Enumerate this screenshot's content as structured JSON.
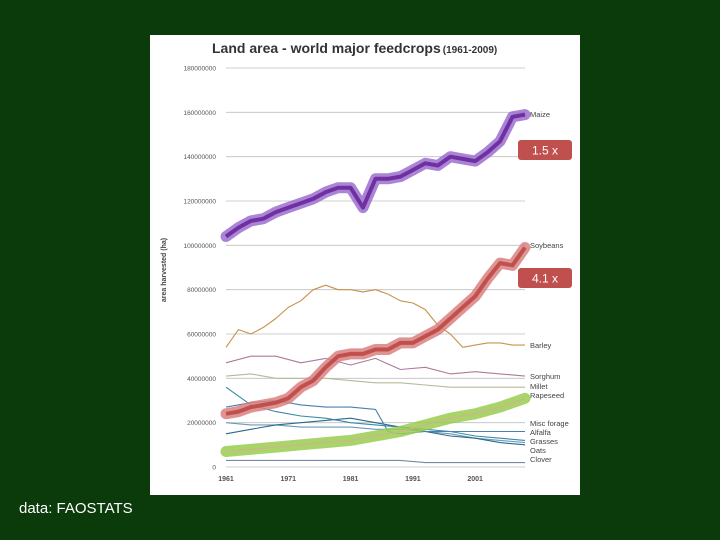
{
  "page": {
    "background": "#0b3a0b",
    "source_note": "data: FAOSTATS"
  },
  "chart_data": {
    "type": "line",
    "title": "Land area - world major feedcrops",
    "title_suffix": "(1961-2009)",
    "ylabel": "area harvested (ha)",
    "xlabel": "",
    "xlim": [
      1961,
      2009
    ],
    "ylim": [
      0,
      180000000
    ],
    "y_ticks": [
      "180000000",
      "160000000",
      "140000000",
      "120000000",
      "100000000",
      "80000000",
      "60000000",
      "40000000",
      "20000000",
      "0"
    ],
    "y_tick_values": [
      180000000,
      160000000,
      140000000,
      120000000,
      100000000,
      80000000,
      60000000,
      40000000,
      20000000,
      0
    ],
    "x_ticks": [
      "1961",
      "1971",
      "1981",
      "1991",
      "2001"
    ],
    "x_tick_values": [
      1961,
      1971,
      1981,
      1991,
      2001
    ],
    "grid": true,
    "series": [
      {
        "name": "Maize",
        "color": "#7030a0",
        "highlight": true,
        "x": [
          1961,
          1963,
          1965,
          1967,
          1969,
          1971,
          1973,
          1975,
          1977,
          1979,
          1981,
          1983,
          1985,
          1987,
          1989,
          1991,
          1993,
          1995,
          1997,
          1999,
          2001,
          2003,
          2005,
          2007,
          2009
        ],
        "values": [
          104000000,
          108000000,
          111000000,
          112000000,
          115000000,
          117000000,
          119000000,
          121000000,
          124000000,
          126000000,
          126000000,
          117000000,
          130000000,
          130000000,
          131000000,
          134000000,
          137000000,
          136000000,
          140000000,
          139000000,
          138000000,
          142000000,
          147000000,
          158000000,
          159000000
        ]
      },
      {
        "name": "Soybeans",
        "color": "#c0504d",
        "highlight": true,
        "x": [
          1961,
          1963,
          1965,
          1967,
          1969,
          1971,
          1973,
          1975,
          1977,
          1979,
          1981,
          1983,
          1985,
          1987,
          1989,
          1991,
          1993,
          1995,
          1997,
          1999,
          2001,
          2003,
          2005,
          2007,
          2009
        ],
        "values": [
          24000000,
          25000000,
          27000000,
          28000000,
          29000000,
          31000000,
          36000000,
          39000000,
          45000000,
          50000000,
          51000000,
          51000000,
          53000000,
          53000000,
          56000000,
          56000000,
          59000000,
          62000000,
          67000000,
          72000000,
          77000000,
          85000000,
          92000000,
          91000000,
          99000000
        ]
      },
      {
        "name": "Barley",
        "color": "#c8924a",
        "x": [
          1961,
          1963,
          1965,
          1967,
          1969,
          1971,
          1973,
          1975,
          1977,
          1979,
          1981,
          1983,
          1985,
          1987,
          1989,
          1991,
          1993,
          1995,
          1997,
          1999,
          2001,
          2003,
          2005,
          2007,
          2009
        ],
        "values": [
          54000000,
          62000000,
          60000000,
          63000000,
          67000000,
          72000000,
          75000000,
          80000000,
          82000000,
          80000000,
          80000000,
          79000000,
          80000000,
          78000000,
          75000000,
          74000000,
          71000000,
          64000000,
          60000000,
          54000000,
          55000000,
          56000000,
          56000000,
          55000000,
          55000000
        ]
      },
      {
        "name": "Sorghum",
        "color": "#b07a9a",
        "x": [
          1961,
          1965,
          1969,
          1973,
          1977,
          1981,
          1985,
          1989,
          1993,
          1997,
          2001,
          2005,
          2009
        ],
        "values": [
          47000000,
          50000000,
          50000000,
          47000000,
          49000000,
          46000000,
          49000000,
          44000000,
          45000000,
          42000000,
          43000000,
          42000000,
          41000000
        ]
      },
      {
        "name": "Millet",
        "color": "#b8b89a",
        "x": [
          1961,
          1965,
          1969,
          1973,
          1977,
          1981,
          1985,
          1989,
          1993,
          1997,
          2001,
          2005,
          2009
        ],
        "values": [
          41000000,
          42000000,
          40000000,
          40000000,
          40000000,
          39000000,
          38000000,
          38000000,
          37000000,
          36000000,
          36000000,
          36000000,
          36000000
        ]
      },
      {
        "name": "Rapeseed",
        "color": "#d4b090",
        "x": [
          1961,
          1965,
          1969,
          1973,
          1977,
          1981,
          1985,
          1989,
          1993,
          1997,
          2001,
          2005,
          2009
        ],
        "values": [
          7000000,
          8000000,
          9000000,
          10000000,
          11000000,
          12000000,
          14000000,
          16000000,
          19000000,
          22000000,
          24000000,
          27000000,
          31000000
        ]
      },
      {
        "name": "Misc forage",
        "color": "#4a7fb0",
        "x": [
          1961,
          1965,
          1969,
          1973,
          1977,
          1981,
          1985,
          1987,
          1989,
          1993,
          1997,
          2001,
          2005,
          2009
        ],
        "values": [
          27000000,
          29000000,
          30000000,
          28000000,
          27000000,
          27000000,
          26000000,
          16000000,
          15000000,
          16000000,
          16000000,
          16000000,
          16000000,
          16000000
        ]
      },
      {
        "name": "Alfalfa",
        "color": "#3a8aa8",
        "x": [
          1961,
          1965,
          1969,
          1973,
          1977,
          1981,
          1985,
          1989,
          1993,
          1997,
          2001,
          2005,
          2009
        ],
        "values": [
          36000000,
          28000000,
          25000000,
          23000000,
          22000000,
          20000000,
          19000000,
          18000000,
          17000000,
          16000000,
          14000000,
          13000000,
          12000000
        ]
      },
      {
        "name": "Grasses",
        "color": "#2a6a8a",
        "x": [
          1961,
          1965,
          1969,
          1973,
          1977,
          1981,
          1985,
          1989,
          1993,
          1997,
          2001,
          2005,
          2009
        ],
        "values": [
          15000000,
          17000000,
          19000000,
          20000000,
          21000000,
          22000000,
          20000000,
          18000000,
          16000000,
          14000000,
          13000000,
          11000000,
          10000000
        ]
      },
      {
        "name": "Oats",
        "color": "#6a9ab8",
        "x": [
          1961,
          1965,
          1969,
          1973,
          1977,
          1981,
          1985,
          1989,
          1993,
          1997,
          2001,
          2005,
          2009
        ],
        "values": [
          20000000,
          19000000,
          19000000,
          18000000,
          18000000,
          18000000,
          17000000,
          17000000,
          16000000,
          15000000,
          13000000,
          12000000,
          11000000
        ]
      },
      {
        "name": "Clover",
        "color": "#7a8aa0",
        "x": [
          1961,
          1965,
          1969,
          1973,
          1977,
          1981,
          1985,
          1989,
          1993,
          1997,
          2001,
          2005,
          2009
        ],
        "values": [
          3000000,
          3000000,
          3000000,
          3000000,
          3000000,
          3000000,
          3000000,
          3000000,
          2000000,
          2000000,
          2000000,
          2000000,
          2000000
        ]
      }
    ],
    "annotations": [
      {
        "name": "maize-multiplier",
        "text": "1.5 x",
        "color": "#c0504d"
      },
      {
        "name": "soybeans-multiplier",
        "text": "4.1 x",
        "color": "#c0504d"
      }
    ]
  }
}
